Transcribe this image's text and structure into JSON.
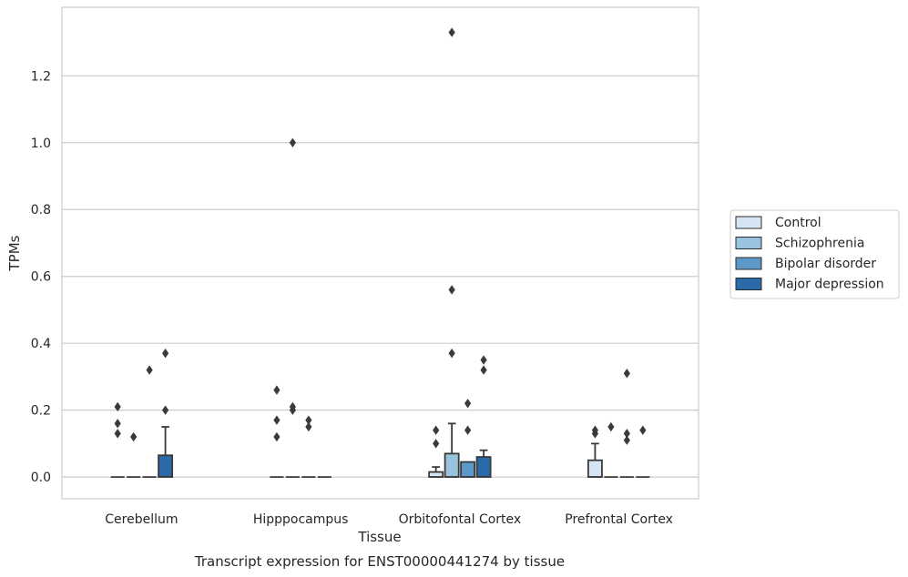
{
  "chart_data": {
    "type": "box",
    "caption": "Transcript expression for ENST00000441274 by tissue",
    "xlabel": "Tissue",
    "ylabel": "TPMs",
    "ylim": [
      -0.065,
      1.405
    ],
    "yticks": [
      "0.0",
      "0.2",
      "0.4",
      "0.6",
      "0.8",
      "1.0",
      "1.2"
    ],
    "grid": true,
    "legend_position": "right",
    "categories": [
      "Cerebellum",
      "Hipppocampus",
      "Orbitofontal Cortex",
      "Prefrontal Cortex"
    ],
    "series": [
      {
        "name": "Control",
        "color": "#d6e5f4",
        "boxes": [
          {
            "q1": 0,
            "median": 0,
            "q3": 0,
            "whisker_low": 0,
            "whisker_high": 0,
            "outliers": [
              0.13,
              0.16,
              0.21
            ]
          },
          {
            "q1": 0,
            "median": 0,
            "q3": 0,
            "whisker_low": 0,
            "whisker_high": 0,
            "outliers": [
              0.12,
              0.17,
              0.26
            ]
          },
          {
            "q1": 0,
            "median": 0,
            "q3": 0.015,
            "whisker_low": 0,
            "whisker_high": 0.03,
            "outliers": [
              0.1,
              0.14
            ]
          },
          {
            "q1": 0,
            "median": 0,
            "q3": 0.05,
            "whisker_low": 0,
            "whisker_high": 0.1,
            "outliers": [
              0.13,
              0.14
            ]
          }
        ]
      },
      {
        "name": "Schizophrenia",
        "color": "#99c3df",
        "boxes": [
          {
            "q1": 0,
            "median": 0,
            "q3": 0,
            "whisker_low": 0,
            "whisker_high": 0,
            "outliers": [
              0.12
            ]
          },
          {
            "q1": 0,
            "median": 0,
            "q3": 0,
            "whisker_low": 0,
            "whisker_high": 0,
            "outliers": [
              0.2,
              0.21,
              1.0
            ]
          },
          {
            "q1": 0,
            "median": 0,
            "q3": 0.07,
            "whisker_low": 0,
            "whisker_high": 0.16,
            "outliers": [
              0.37,
              0.56,
              1.33
            ]
          },
          {
            "q1": 0,
            "median": 0,
            "q3": 0,
            "whisker_low": 0,
            "whisker_high": 0,
            "outliers": [
              0.15
            ]
          }
        ]
      },
      {
        "name": "Bipolar disorder",
        "color": "#5b9ac8",
        "boxes": [
          {
            "q1": 0,
            "median": 0,
            "q3": 0,
            "whisker_low": 0,
            "whisker_high": 0,
            "outliers": [
              0.32
            ]
          },
          {
            "q1": 0,
            "median": 0,
            "q3": 0,
            "whisker_low": 0,
            "whisker_high": 0,
            "outliers": [
              0.15,
              0.17
            ]
          },
          {
            "q1": 0,
            "median": 0,
            "q3": 0.045,
            "whisker_low": 0,
            "whisker_high": 0.045,
            "outliers": [
              0.14,
              0.22
            ]
          },
          {
            "q1": 0,
            "median": 0,
            "q3": 0,
            "whisker_low": 0,
            "whisker_high": 0,
            "outliers": [
              0.11,
              0.13,
              0.31
            ]
          }
        ]
      },
      {
        "name": "Major depression",
        "color": "#2b6aa8",
        "boxes": [
          {
            "q1": 0,
            "median": 0,
            "q3": 0.065,
            "whisker_low": 0,
            "whisker_high": 0.15,
            "outliers": [
              0.2,
              0.37
            ]
          },
          {
            "q1": 0,
            "median": 0,
            "q3": 0,
            "whisker_low": 0,
            "whisker_high": 0,
            "outliers": []
          },
          {
            "q1": 0,
            "median": 0,
            "q3": 0.06,
            "whisker_low": 0,
            "whisker_high": 0.08,
            "outliers": [
              0.32,
              0.35
            ]
          },
          {
            "q1": 0,
            "median": 0,
            "q3": 0,
            "whisker_low": 0,
            "whisker_high": 0,
            "outliers": [
              0.14
            ]
          }
        ]
      }
    ]
  }
}
